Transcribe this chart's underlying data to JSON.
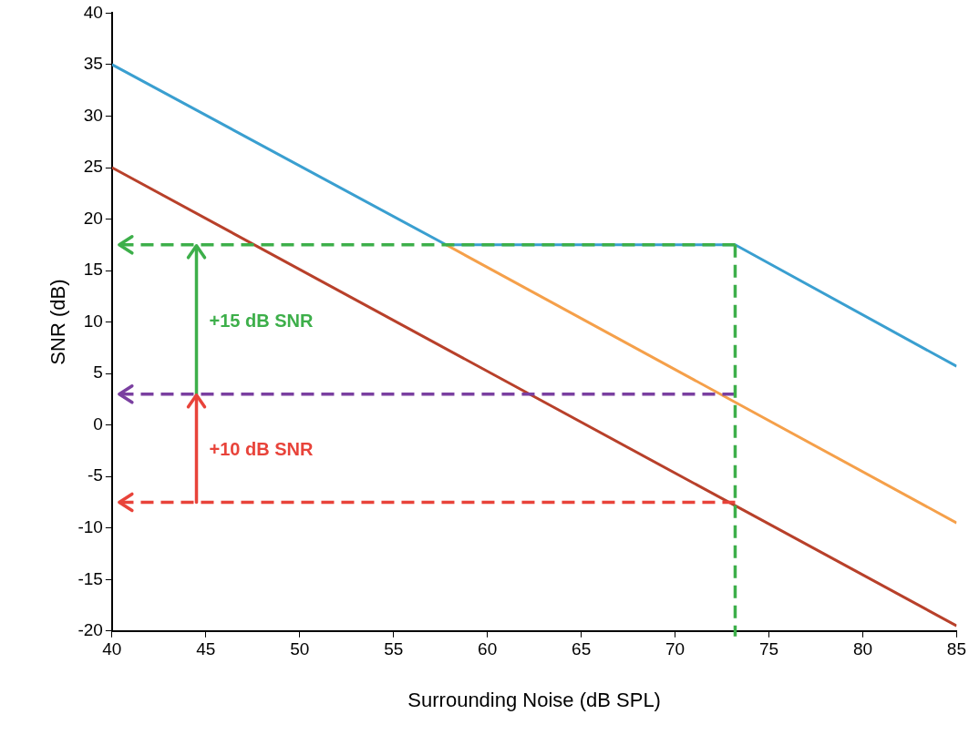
{
  "chart_data": {
    "type": "line",
    "xlabel": "Surrounding Noise (dB SPL)",
    "ylabel": "SNR (dB)",
    "xlim": [
      40,
      85
    ],
    "xticks": [
      40,
      45,
      50,
      55,
      60,
      65,
      70,
      75,
      80,
      85
    ],
    "ylim": [
      -20,
      40
    ],
    "yticks": [
      -20,
      -15,
      -10,
      -5,
      0,
      5,
      10,
      15,
      20,
      25,
      30,
      35,
      40
    ],
    "grid": false,
    "legend": false,
    "marker": "none",
    "series": [
      {
        "color": "#f5a04a",
        "x": [
          57.8,
          85
        ],
        "values": [
          17.5,
          -9.5
        ]
      },
      {
        "color": "#3a9fd0",
        "x": [
          40,
          57.8,
          73.2,
          85
        ],
        "values": [
          35,
          17.5,
          17.5,
          5.7
        ]
      },
      {
        "color": "#b8402a",
        "x": [
          40,
          85
        ],
        "values": [
          25,
          -19.5
        ]
      }
    ],
    "ref_lines": [
      {
        "axis": "y",
        "value": 17.5,
        "color": "#3daf4a",
        "line_style": "dashed"
      },
      {
        "axis": "y",
        "value": 3,
        "color": "#7a3fa0",
        "line_style": "dashed"
      },
      {
        "axis": "y",
        "value": -7.5,
        "color": "#e8433a",
        "line_style": "dashed"
      },
      {
        "axis": "x",
        "value": 73.2,
        "color": "#3daf4a",
        "line_style": "dashed"
      }
    ],
    "annotations": [
      "+15 dB SNR",
      "+10 dB SNR"
    ]
  }
}
